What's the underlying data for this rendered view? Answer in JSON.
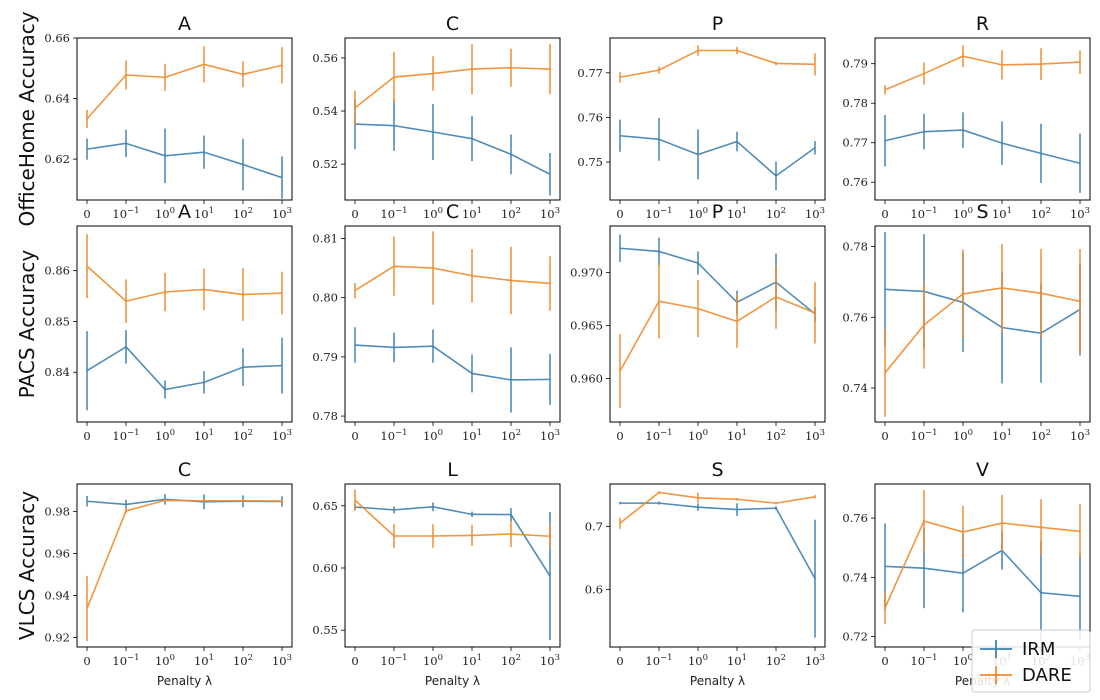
{
  "chart_data": {
    "type": "line",
    "x": [
      "0",
      "10^-1",
      "10^0",
      "10^1",
      "10^2",
      "10^3"
    ],
    "xlabel": "Penalty λ",
    "colors": {
      "IRM": "#3d7fae",
      "DARE": "#f08a2c"
    },
    "legend": {
      "entries": [
        "IRM",
        "DARE"
      ],
      "placement": "bottom-right"
    },
    "rows": [
      {
        "label": "OfficeHome Accuracy",
        "panels": [
          {
            "title": "A",
            "ylim": [
              0.6065,
              0.66
            ],
            "yticks": [
              0.62,
              0.64,
              0.66
            ],
            "ytick_labels": [
              "0.62",
              "0.64",
              "0.66"
            ],
            "series": [
              {
                "name": "IRM",
                "values": [
                  0.6233,
                  0.6252,
                  0.6211,
                  0.6223,
                  0.6182,
                  0.6139
                ],
                "err": [
                  0.0035,
                  0.0045,
                  0.009,
                  0.0055,
                  0.0085,
                  0.007
                ]
              },
              {
                "name": "DARE",
                "values": [
                  0.6333,
                  0.6478,
                  0.647,
                  0.6513,
                  0.648,
                  0.651
                ],
                "err": [
                  0.003,
                  0.0048,
                  0.0045,
                  0.006,
                  0.0043,
                  0.006
                ]
              }
            ]
          },
          {
            "title": "C",
            "ylim": [
              0.5065,
              0.5675
            ],
            "yticks": [
              0.52,
              0.54,
              0.56
            ],
            "ytick_labels": [
              "0.52",
              "0.54",
              "0.56"
            ],
            "series": [
              {
                "name": "IRM",
                "values": [
                  0.5351,
                  0.5345,
                  0.5321,
                  0.5296,
                  0.5237,
                  0.5162
                ],
                "err": [
                  0.0095,
                  0.0095,
                  0.0105,
                  0.0085,
                  0.0075,
                  0.008
                ]
              },
              {
                "name": "DARE",
                "values": [
                  0.5412,
                  0.5528,
                  0.5541,
                  0.5558,
                  0.5563,
                  0.5558
                ],
                "err": [
                  0.0065,
                  0.0095,
                  0.0065,
                  0.0095,
                  0.0072,
                  0.0095
                ]
              }
            ]
          },
          {
            "title": "P",
            "ylim": [
              0.7415,
              0.7778
            ],
            "yticks": [
              0.75,
              0.76,
              0.77
            ],
            "ytick_labels": [
              "0.75",
              "0.76",
              "0.77"
            ],
            "series": [
              {
                "name": "IRM",
                "values": [
                  0.7559,
                  0.7551,
                  0.7517,
                  0.7546,
                  0.7469,
                  0.7532
                ],
                "err": [
                  0.0036,
                  0.0048,
                  0.0056,
                  0.0022,
                  0.0032,
                  0.0015
                ]
              },
              {
                "name": "DARE",
                "values": [
                  0.769,
                  0.7706,
                  0.775,
                  0.775,
                  0.7721,
                  0.7719
                ],
                "err": [
                  0.0012,
                  0.0008,
                  0.0012,
                  0.0008,
                  0.0004,
                  0.0025
                ]
              }
            ]
          },
          {
            "title": "R",
            "ylim": [
              0.7555,
              0.7965
            ],
            "yticks": [
              0.76,
              0.77,
              0.78,
              0.79
            ],
            "ytick_labels": [
              "0.76",
              "0.77",
              "0.78",
              "0.79"
            ],
            "series": [
              {
                "name": "IRM",
                "values": [
                  0.7705,
                  0.7728,
                  0.7732,
                  0.7699,
                  0.7673,
                  0.7648
                ],
                "err": [
                  0.0065,
                  0.0045,
                  0.0045,
                  0.0055,
                  0.0075,
                  0.0075
                ]
              },
              {
                "name": "DARE",
                "values": [
                  0.7834,
                  0.7875,
                  0.7919,
                  0.7897,
                  0.7899,
                  0.7904
                ],
                "err": [
                  0.0012,
                  0.0028,
                  0.0028,
                  0.0037,
                  0.004,
                  0.003
                ]
              }
            ]
          }
        ]
      },
      {
        "label": "PACS Accuracy",
        "panels": [
          {
            "title": "A",
            "ylim": [
              0.8302,
              0.8688
            ],
            "yticks": [
              0.84,
              0.85,
              0.86
            ],
            "ytick_labels": [
              "0.84",
              "0.85",
              "0.86"
            ],
            "series": [
              {
                "name": "IRM",
                "values": [
                  0.8403,
                  0.845,
                  0.8366,
                  0.838,
                  0.841,
                  0.8413
                ],
                "err": [
                  0.0078,
                  0.0033,
                  0.0018,
                  0.0022,
                  0.0037,
                  0.0055
                ]
              },
              {
                "name": "DARE",
                "values": [
                  0.8609,
                  0.854,
                  0.8558,
                  0.8563,
                  0.8553,
                  0.8556
                ],
                "err": [
                  0.0063,
                  0.0043,
                  0.0038,
                  0.0041,
                  0.0052,
                  0.0042
                ]
              }
            ]
          },
          {
            "title": "C",
            "ylim": [
              0.779,
              0.8121
            ],
            "yticks": [
              0.78,
              0.79,
              0.8,
              0.81
            ],
            "ytick_labels": [
              "0.78",
              "0.79",
              "0.80",
              "0.81"
            ],
            "series": [
              {
                "name": "IRM",
                "values": [
                  0.792,
                  0.7916,
                  0.7918,
                  0.7872,
                  0.7861,
                  0.7862
                ],
                "err": [
                  0.003,
                  0.0025,
                  0.0028,
                  0.0032,
                  0.0055,
                  0.0043
                ]
              },
              {
                "name": "DARE",
                "values": [
                  0.8012,
                  0.8053,
                  0.805,
                  0.8037,
                  0.8029,
                  0.8024
                ],
                "err": [
                  0.0013,
                  0.005,
                  0.0062,
                  0.0045,
                  0.0057,
                  0.0046
                ]
              }
            ]
          },
          {
            "title": "P",
            "ylim": [
              0.9559,
              0.9744
            ],
            "yticks": [
              0.96,
              0.965,
              0.97
            ],
            "ytick_labels": [
              "0.960",
              "0.965",
              "0.970"
            ],
            "series": [
              {
                "name": "IRM",
                "values": [
                  0.9723,
                  0.972,
                  0.9709,
                  0.9672,
                  0.9691,
                  0.9661
                ],
                "err": [
                  0.0013,
                  0.0013,
                  0.0011,
                  0.0011,
                  0.0027,
                  0.0007
                ]
              },
              {
                "name": "DARE",
                "values": [
                  0.9607,
                  0.9673,
                  0.9666,
                  0.9654,
                  0.9677,
                  0.9662
                ],
                "err": [
                  0.0035,
                  0.0035,
                  0.0027,
                  0.0025,
                  0.003,
                  0.0029
                ]
              }
            ]
          },
          {
            "title": "S",
            "ylim": [
              0.7304,
              0.7858
            ],
            "yticks": [
              0.74,
              0.76,
              0.78
            ],
            "ytick_labels": [
              "0.74",
              "0.76",
              "0.78"
            ],
            "series": [
              {
                "name": "IRM",
                "values": [
                  0.7679,
                  0.7673,
                  0.7642,
                  0.7571,
                  0.7555,
                  0.7622
                ],
                "err": [
                  0.0162,
                  0.0162,
                  0.014,
                  0.0158,
                  0.014,
                  0.013
                ]
              },
              {
                "name": "DARE",
                "values": [
                  0.7443,
                  0.7578,
                  0.7666,
                  0.7683,
                  0.7668,
                  0.7645
                ],
                "err": [
                  0.0124,
                  0.0123,
                  0.0125,
                  0.0124,
                  0.0125,
                  0.0148
                ]
              }
            ]
          }
        ]
      },
      {
        "label": "VLCS Accuracy",
        "panels": [
          {
            "title": "C",
            "ylim": [
              0.9155,
              0.993
            ],
            "yticks": [
              0.92,
              0.94,
              0.96,
              0.98
            ],
            "ytick_labels": [
              "0.92",
              "0.94",
              "0.96",
              "0.98"
            ],
            "series": [
              {
                "name": "IRM",
                "values": [
                  0.9848,
                  0.9833,
                  0.9857,
                  0.9845,
                  0.9848,
                  0.9847
                ],
                "err": [
                  0.0025,
                  0.0022,
                  0.0025,
                  0.0035,
                  0.0028,
                  0.0025
                ]
              },
              {
                "name": "DARE",
                "values": [
                  0.9338,
                  0.9802,
                  0.9852,
                  0.985,
                  0.985,
                  0.9849
                ],
                "err": [
                  0.0155,
                  0.0012,
                  0.0008,
                  0.0008,
                  0.0008,
                  0.0008
                ]
              }
            ]
          },
          {
            "title": "L",
            "ylim": [
              0.5365,
              0.6675
            ],
            "yticks": [
              0.55,
              0.6,
              0.65
            ],
            "ytick_labels": [
              "0.55",
              "0.60",
              "0.65"
            ],
            "series": [
              {
                "name": "IRM",
                "values": [
                  0.649,
                  0.6467,
                  0.6492,
                  0.6431,
                  0.6429,
                  0.5935
                ],
                "err": [
                  0.0025,
                  0.0028,
                  0.0035,
                  0.0022,
                  0.0052,
                  0.0515
                ]
              },
              {
                "name": "DARE",
                "values": [
                  0.6545,
                  0.6257,
                  0.6257,
                  0.6262,
                  0.6273,
                  0.6255
                ],
                "err": [
                  0.0085,
                  0.0095,
                  0.0095,
                  0.0085,
                  0.0105,
                  0.0098
                ]
              }
            ]
          },
          {
            "title": "S",
            "ylim": [
              0.508,
              0.768
            ],
            "yticks": [
              0.6,
              0.7
            ],
            "ytick_labels": [
              "0.6",
              "0.7"
            ],
            "series": [
              {
                "name": "IRM",
                "values": [
                  0.7375,
                  0.7375,
                  0.731,
                  0.7272,
                  0.7295,
                  0.617
                ],
                "err": [
                  0.002,
                  0.0025,
                  0.006,
                  0.01,
                  0.003,
                  0.094
                ]
              },
              {
                "name": "DARE",
                "values": [
                  0.7055,
                  0.7545,
                  0.746,
                  0.7435,
                  0.7375,
                  0.7475
                ],
                "err": [
                  0.009,
                  0.002,
                  0.008,
                  0.002,
                  0.002,
                  0.003
                ]
              }
            ]
          },
          {
            "title": "V",
            "ylim": [
              0.7165,
              0.7715
            ],
            "yticks": [
              0.72,
              0.74,
              0.76
            ],
            "ytick_labels": [
              "0.72",
              "0.74",
              "0.76"
            ],
            "series": [
              {
                "name": "IRM",
                "values": [
                  0.7437,
                  0.7431,
                  0.7414,
                  0.7491,
                  0.7348,
                  0.7336
                ],
                "err": [
                  0.0145,
                  0.0135,
                  0.0132,
                  0.0065,
                  0.0175,
                  0.0145
                ]
              },
              {
                "name": "DARE",
                "values": [
                  0.7297,
                  0.759,
                  0.7553,
                  0.7583,
                  0.7569,
                  0.7555
                ],
                "err": [
                  0.0055,
                  0.0105,
                  0.0088,
                  0.0095,
                  0.0095,
                  0.0092
                ]
              }
            ]
          }
        ]
      }
    ]
  }
}
